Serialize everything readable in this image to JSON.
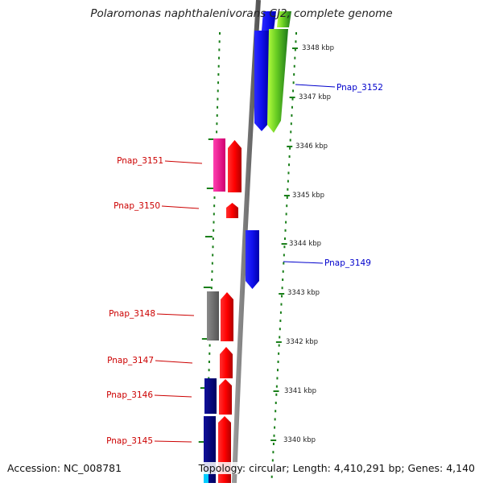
{
  "title": "Polaromonas naphthalenivorans CJ2, complete genome",
  "accession": "Accession: NC_008781",
  "summary": "Topology: circular; Length: 4,410,291 bp; Genes: 4,140",
  "colors": {
    "backbone": "#808080",
    "tick": "#1a7f1a",
    "forward_label": "#0000cc",
    "reverse_label": "#cc0000",
    "blue_gene": "#1a1aff",
    "red_gene": "#ff0000",
    "pink_gene": "#ff1a99",
    "gray_gene": "#777777",
    "navy_gene": "#000080",
    "green_gene": "#2e8b22",
    "lime_gene": "#99ff00"
  },
  "kbp_labels": [
    "3348 kbp",
    "3347 kbp",
    "3346 kbp",
    "3345 kbp",
    "3344 kbp",
    "3343 kbp",
    "3342 kbp",
    "3341 kbp",
    "3340 kbp"
  ],
  "gene_labels": [
    {
      "text": "Pnap_3152",
      "strand": "forward"
    },
    {
      "text": "Pnap_3151",
      "strand": "reverse"
    },
    {
      "text": "Pnap_3150",
      "strand": "reverse"
    },
    {
      "text": "Pnap_3149",
      "strand": "forward"
    },
    {
      "text": "Pnap_3148",
      "strand": "reverse"
    },
    {
      "text": "Pnap_3147",
      "strand": "reverse"
    },
    {
      "text": "Pnap_3146",
      "strand": "reverse"
    },
    {
      "text": "Pnap_3145",
      "strand": "reverse"
    }
  ]
}
